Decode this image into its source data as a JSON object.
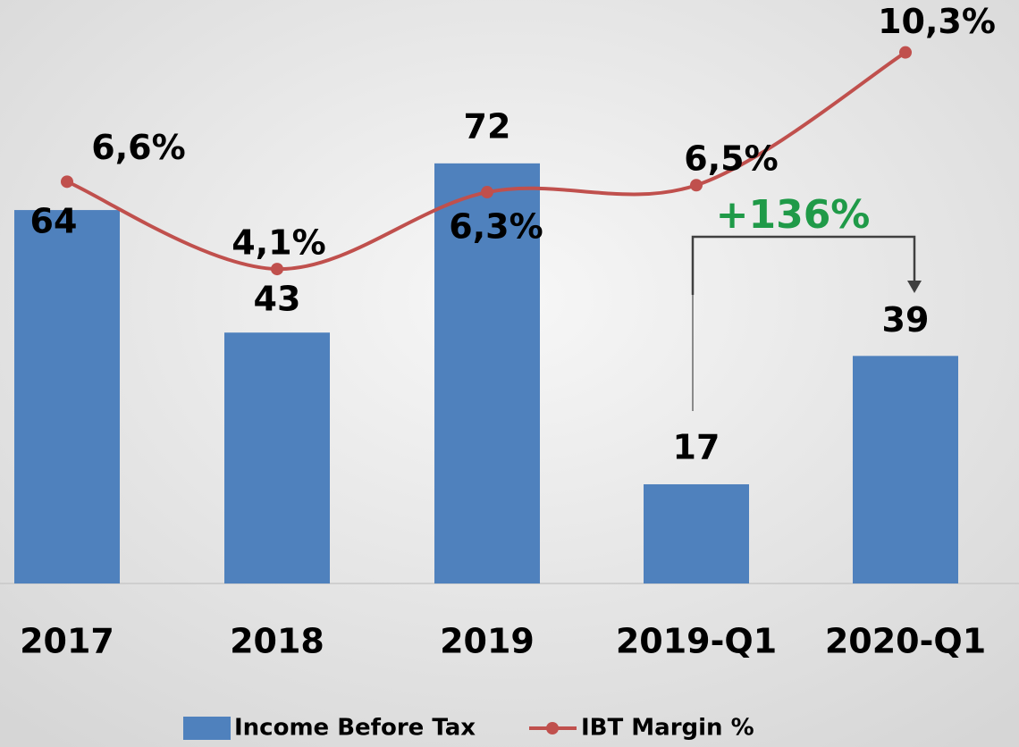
{
  "chart_data": {
    "type": "bar_line",
    "categories": [
      "2017",
      "2018",
      "2019",
      "2019-Q1",
      "2020-Q1"
    ],
    "ylim": [
      0,
      100
    ],
    "y2lim": [
      -4.9,
      11.8
    ],
    "series": [
      {
        "name": "Income Before Tax",
        "type": "bar",
        "color": "#4f81bd",
        "values": [
          64,
          43,
          72,
          17,
          39
        ]
      },
      {
        "name": "IBT Margin %",
        "type": "line",
        "axis": "y2",
        "color": "#c0504d",
        "values": [
          6.6,
          4.1,
          6.3,
          6.5,
          10.3
        ],
        "value_labels": [
          "6,6%",
          "4,1%",
          "6,3%",
          "6,5%",
          "10,3%"
        ]
      }
    ],
    "annotations": [
      {
        "text": "+136%"
      }
    ]
  }
}
